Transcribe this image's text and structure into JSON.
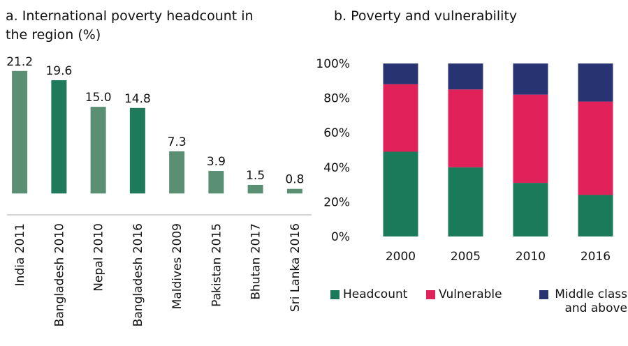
{
  "chart_data": [
    {
      "type": "bar",
      "title": "a. International poverty headcount in the region (%)",
      "categories": [
        "India 2011",
        "Bangladesh 2010",
        "Nepal 2010",
        "Bangladesh 2016",
        "Maldives 2009",
        "Pakistan 2015",
        "Bhutan 2017",
        "Sri Lanka 2016"
      ],
      "values": [
        21.2,
        19.6,
        15.0,
        14.8,
        7.3,
        3.9,
        1.5,
        0.8
      ],
      "value_labels": [
        "21.2",
        "19.6",
        "15.0",
        "14.8",
        "7.3",
        "3.9",
        "1.5",
        "0.8"
      ],
      "colors": [
        "#5a8f74",
        "#1f7a5b",
        "#5a8f74",
        "#1f7a5b",
        "#5a8f74",
        "#5a8f74",
        "#5a8f74",
        "#5a8f74"
      ],
      "ylim": [
        -3.7,
        22.5
      ]
    },
    {
      "type": "stacked_bar",
      "title": "b. Poverty and vulnerability",
      "categories": [
        "2000",
        "2005",
        "2010",
        "2016"
      ],
      "series": [
        {
          "name": "Headcount",
          "color": "#1a7a5a",
          "values": [
            49,
            40,
            31,
            24
          ]
        },
        {
          "name": "Vulnerable",
          "color": "#e0215a",
          "values": [
            39,
            45,
            51,
            54
          ]
        },
        {
          "name": "Middle class and above",
          "color": "#283371",
          "values": [
            12,
            15,
            18,
            22
          ]
        }
      ],
      "ylim": [
        0,
        100
      ],
      "yticks": [
        {
          "value": 0,
          "label": "0%"
        },
        {
          "value": 20,
          "label": "20%"
        },
        {
          "value": 40,
          "label": "40%"
        },
        {
          "value": 60,
          "label": "60%"
        },
        {
          "value": 80,
          "label": "80%"
        },
        {
          "value": 100,
          "label": "100%"
        }
      ]
    }
  ]
}
